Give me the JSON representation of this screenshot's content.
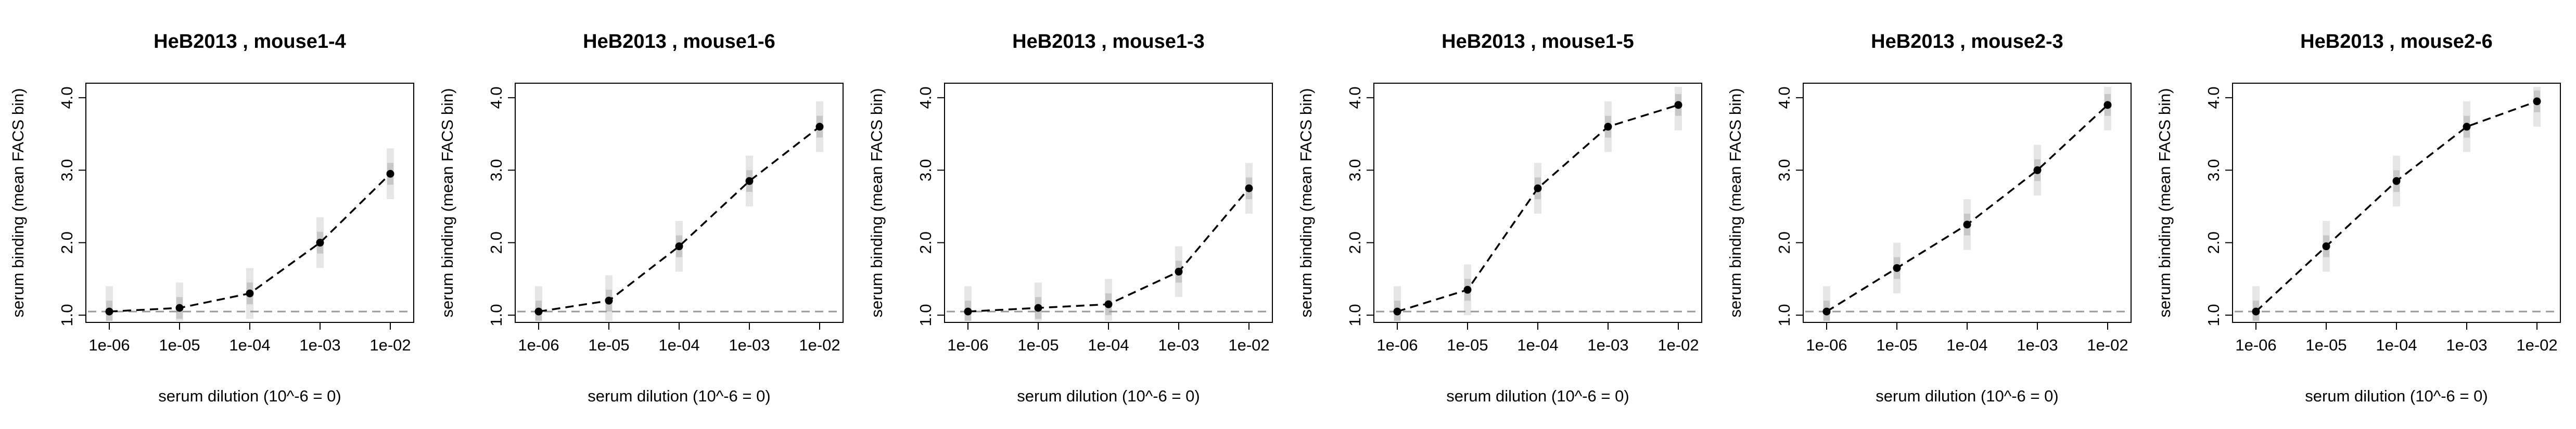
{
  "colors": {
    "line": "#000000",
    "baseline": "#9a9a9a",
    "shadow": "#8c8c8c",
    "axis": "#000000"
  },
  "chart_data": [
    {
      "type": "line",
      "title": "HeB2013 , mouse1-4",
      "xlabel": "serum dilution (10^-6 = 0)",
      "ylabel": "serum binding (mean FACS bin)",
      "x_scale": "log10",
      "x": [
        1e-06,
        1e-05,
        0.0001,
        0.001,
        0.01
      ],
      "x_tick_labels": [
        "1e-06",
        "1e-05",
        "1e-04",
        "1e-03",
        "1e-02"
      ],
      "y_ticks": [
        1.0,
        2.0,
        3.0,
        4.0
      ],
      "y_tick_labels": [
        "1.0",
        "2.0",
        "3.0",
        "4.0"
      ],
      "ylim": [
        0.9,
        4.2
      ],
      "baseline_y": 1.05,
      "values": [
        1.05,
        1.1,
        1.3,
        2.0,
        2.95
      ],
      "grid": false,
      "legend": "none"
    },
    {
      "type": "line",
      "title": "HeB2013 , mouse1-6",
      "xlabel": "serum dilution (10^-6 = 0)",
      "ylabel": "serum binding (mean FACS bin)",
      "x_scale": "log10",
      "x": [
        1e-06,
        1e-05,
        0.0001,
        0.001,
        0.01
      ],
      "x_tick_labels": [
        "1e-06",
        "1e-05",
        "1e-04",
        "1e-03",
        "1e-02"
      ],
      "y_ticks": [
        1.0,
        2.0,
        3.0,
        4.0
      ],
      "y_tick_labels": [
        "1.0",
        "2.0",
        "3.0",
        "4.0"
      ],
      "ylim": [
        0.9,
        4.2
      ],
      "baseline_y": 1.05,
      "values": [
        1.05,
        1.2,
        1.95,
        2.85,
        3.6
      ],
      "grid": false,
      "legend": "none"
    },
    {
      "type": "line",
      "title": "HeB2013 , mouse1-3",
      "xlabel": "serum dilution (10^-6 = 0)",
      "ylabel": "serum binding (mean FACS bin)",
      "x_scale": "log10",
      "x": [
        1e-06,
        1e-05,
        0.0001,
        0.001,
        0.01
      ],
      "x_tick_labels": [
        "1e-06",
        "1e-05",
        "1e-04",
        "1e-03",
        "1e-02"
      ],
      "y_ticks": [
        1.0,
        2.0,
        3.0,
        4.0
      ],
      "y_tick_labels": [
        "1.0",
        "2.0",
        "3.0",
        "4.0"
      ],
      "ylim": [
        0.9,
        4.2
      ],
      "baseline_y": 1.05,
      "values": [
        1.05,
        1.1,
        1.15,
        1.6,
        2.75
      ],
      "grid": false,
      "legend": "none"
    },
    {
      "type": "line",
      "title": "HeB2013 , mouse1-5",
      "xlabel": "serum dilution (10^-6 = 0)",
      "ylabel": "serum binding (mean FACS bin)",
      "x_scale": "log10",
      "x": [
        1e-06,
        1e-05,
        0.0001,
        0.001,
        0.01
      ],
      "x_tick_labels": [
        "1e-06",
        "1e-05",
        "1e-04",
        "1e-03",
        "1e-02"
      ],
      "y_ticks": [
        1.0,
        2.0,
        3.0,
        4.0
      ],
      "y_tick_labels": [
        "1.0",
        "2.0",
        "3.0",
        "4.0"
      ],
      "ylim": [
        0.9,
        4.2
      ],
      "baseline_y": 1.05,
      "values": [
        1.05,
        1.35,
        2.75,
        3.6,
        3.9
      ],
      "grid": false,
      "legend": "none"
    },
    {
      "type": "line",
      "title": "HeB2013 , mouse2-3",
      "xlabel": "serum dilution (10^-6 = 0)",
      "ylabel": "serum binding (mean FACS bin)",
      "x_scale": "log10",
      "x": [
        1e-06,
        1e-05,
        0.0001,
        0.001,
        0.01
      ],
      "x_tick_labels": [
        "1e-06",
        "1e-05",
        "1e-04",
        "1e-03",
        "1e-02"
      ],
      "y_ticks": [
        1.0,
        2.0,
        3.0,
        4.0
      ],
      "y_tick_labels": [
        "1.0",
        "2.0",
        "3.0",
        "4.0"
      ],
      "ylim": [
        0.9,
        4.2
      ],
      "baseline_y": 1.05,
      "values": [
        1.05,
        1.65,
        2.25,
        3.0,
        3.9
      ],
      "grid": false,
      "legend": "none"
    },
    {
      "type": "line",
      "title": "HeB2013 , mouse2-6",
      "xlabel": "serum dilution (10^-6 = 0)",
      "ylabel": "serum binding (mean FACS bin)",
      "x_scale": "log10",
      "x": [
        1e-06,
        1e-05,
        0.0001,
        0.001,
        0.01
      ],
      "x_tick_labels": [
        "1e-06",
        "1e-05",
        "1e-04",
        "1e-03",
        "1e-02"
      ],
      "y_ticks": [
        1.0,
        2.0,
        3.0,
        4.0
      ],
      "y_tick_labels": [
        "1.0",
        "2.0",
        "3.0",
        "4.0"
      ],
      "ylim": [
        0.9,
        4.2
      ],
      "baseline_y": 1.05,
      "values": [
        1.05,
        1.95,
        2.85,
        3.6,
        3.95
      ],
      "grid": false,
      "legend": "none"
    }
  ]
}
